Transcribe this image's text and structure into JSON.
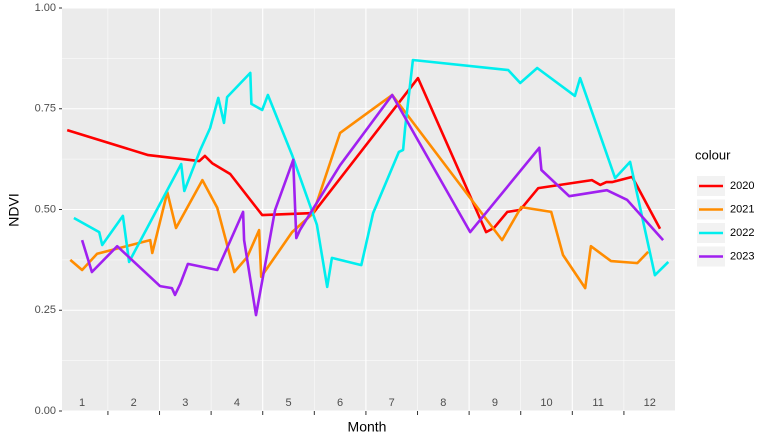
{
  "chart_data": {
    "type": "line",
    "x_label": "Month",
    "y_label": "NDVI",
    "xlim": [
      0.61,
      12.49
    ],
    "ylim": [
      0,
      1
    ],
    "xticks": [
      1.5,
      2.5,
      3.5,
      4.5,
      5.5,
      6.5,
      7.5,
      8.5,
      9.5,
      10.5,
      11.5
    ],
    "month_labels": [
      1,
      2,
      3,
      4,
      5,
      6,
      7,
      8,
      9,
      10,
      11,
      12
    ],
    "yticks": [
      {
        "value": 0,
        "label": "0.00"
      },
      {
        "value": 0.25,
        "label": "0.25"
      },
      {
        "value": 0.5,
        "label": "0.50"
      },
      {
        "value": 0.75,
        "label": "0.75"
      },
      {
        "value": 1,
        "label": "1.00"
      }
    ],
    "grid": true,
    "legend_title": "colour",
    "legend_position": "right",
    "series": [
      {
        "name": "2020",
        "color": "#ff0000",
        "x": [
          0.71,
          2.28,
          3.27,
          3.38,
          3.52,
          3.87,
          4.49,
          5.48,
          7.51,
          8.83,
          8.98,
          9.24,
          9.49,
          9.84,
          10.88,
          11.04,
          11.16,
          11.27,
          11.66,
          12.2
        ],
        "values": [
          0.697,
          0.635,
          0.62,
          0.633,
          0.615,
          0.588,
          0.486,
          0.491,
          0.826,
          0.444,
          0.454,
          0.494,
          0.499,
          0.553,
          0.573,
          0.561,
          0.568,
          0.568,
          0.581,
          0.452
        ]
      },
      {
        "name": "2021",
        "color": "#ff8c00",
        "x": [
          0.77,
          1,
          1.29,
          2.32,
          2.36,
          2.65,
          2.82,
          3.33,
          3.62,
          3.95,
          4.2,
          4.43,
          4.47,
          5.07,
          5.48,
          6,
          7.01,
          9.14,
          9.51,
          10.09,
          10.32,
          10.75,
          10.86,
          11.25,
          11.76,
          11.97
        ],
        "values": [
          0.375,
          0.35,
          0.39,
          0.424,
          0.392,
          0.543,
          0.454,
          0.573,
          0.504,
          0.345,
          0.382,
          0.449,
          0.333,
          0.444,
          0.491,
          0.69,
          0.784,
          0.424,
          0.506,
          0.494,
          0.387,
          0.305,
          0.409,
          0.372,
          0.367,
          0.395
        ]
      },
      {
        "name": "2022",
        "color": "#00eeee",
        "x": [
          0.84,
          1.33,
          1.39,
          1.79,
          1.91,
          2.92,
          2.98,
          3.29,
          3.48,
          3.64,
          3.75,
          3.81,
          4.26,
          4.28,
          4.49,
          4.6,
          5.07,
          5.55,
          5.75,
          5.84,
          6.41,
          6.64,
          7.14,
          7.22,
          7.26,
          7.41,
          9.26,
          9.49,
          9.82,
          10.55,
          10.65,
          11.14,
          11.33,
          11.62,
          12.1,
          12.36
        ],
        "values": [
          0.479,
          0.444,
          0.412,
          0.484,
          0.37,
          0.613,
          0.546,
          0.648,
          0.702,
          0.777,
          0.715,
          0.779,
          0.839,
          0.762,
          0.747,
          0.784,
          0.635,
          0.462,
          0.308,
          0.38,
          0.362,
          0.491,
          0.643,
          0.648,
          0.702,
          0.871,
          0.846,
          0.814,
          0.851,
          0.782,
          0.826,
          0.648,
          0.578,
          0.618,
          0.337,
          0.37
        ]
      },
      {
        "name": "2023",
        "color": "#a020f0",
        "x": [
          1,
          1.19,
          1.68,
          2.51,
          2.74,
          2.8,
          2.9,
          3.05,
          3.62,
          4.12,
          4.14,
          4.37,
          4.74,
          5.09,
          5.15,
          5.22,
          6,
          7.01,
          8.52,
          9.86,
          9.9,
          10.44,
          11.17,
          11.56,
          12.26
        ],
        "values": [
          0.424,
          0.345,
          0.409,
          0.31,
          0.305,
          0.288,
          0.315,
          0.365,
          0.35,
          0.494,
          0.424,
          0.238,
          0.499,
          0.623,
          0.429,
          0.449,
          0.61,
          0.784,
          0.444,
          0.653,
          0.598,
          0.533,
          0.548,
          0.524,
          0.424
        ]
      }
    ]
  }
}
